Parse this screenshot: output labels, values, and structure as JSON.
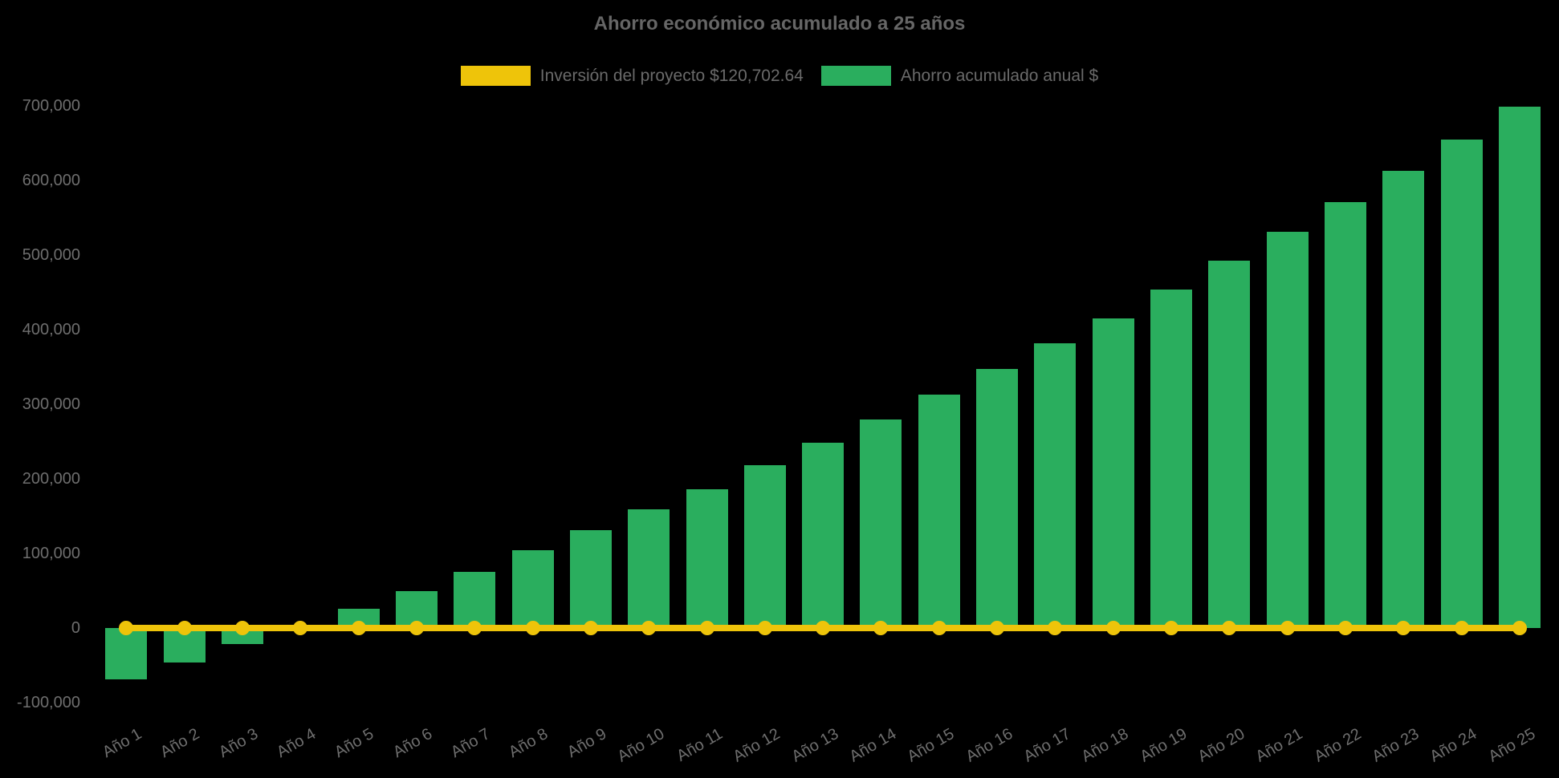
{
  "chart_data": {
    "type": "bar",
    "title": "Ahorro económico acumulado a 25 años",
    "categories": [
      "Año 1",
      "Año 2",
      "Año 3",
      "Año 4",
      "Año 5",
      "Año 6",
      "Año 7",
      "Año 8",
      "Año 9",
      "Año 10",
      "Año 11",
      "Año 12",
      "Año 13",
      "Año 14",
      "Año 15",
      "Año 16",
      "Año 17",
      "Año 18",
      "Año 19",
      "Año 20",
      "Año 21",
      "Año 22",
      "Año 23",
      "Año 24",
      "Año 25"
    ],
    "series": [
      {
        "name": "Inversión del proyecto $120,702.64",
        "type": "line",
        "color": "#EEC40A",
        "marker": "circle",
        "values": [
          0,
          0,
          0,
          0,
          0,
          0,
          0,
          0,
          0,
          0,
          0,
          0,
          0,
          0,
          0,
          0,
          0,
          0,
          0,
          0,
          0,
          0,
          0,
          0,
          0
        ]
      },
      {
        "name": "Ahorro acumulado anual $",
        "type": "bar",
        "color": "#2AAE5E",
        "values": [
          -68800,
          -46200,
          -21900,
          1200,
          25800,
          49800,
          75600,
          104600,
          131200,
          159100,
          186500,
          218300,
          248100,
          279900,
          313200,
          347300,
          382000,
          415400,
          453800,
          492500,
          530800,
          570600,
          612600,
          655200,
          699300
        ]
      }
    ],
    "investment_label_value": "$120,702.64",
    "yticks": [
      700000,
      600000,
      500000,
      400000,
      300000,
      200000,
      100000,
      0,
      -100000
    ],
    "ylim": [
      -130000,
      745000
    ],
    "xlabel": "",
    "ylabel": "",
    "grid": false,
    "legend_position": "top",
    "background": "#000000",
    "text_color": "#6e6e6e",
    "title_color": "#666666"
  }
}
